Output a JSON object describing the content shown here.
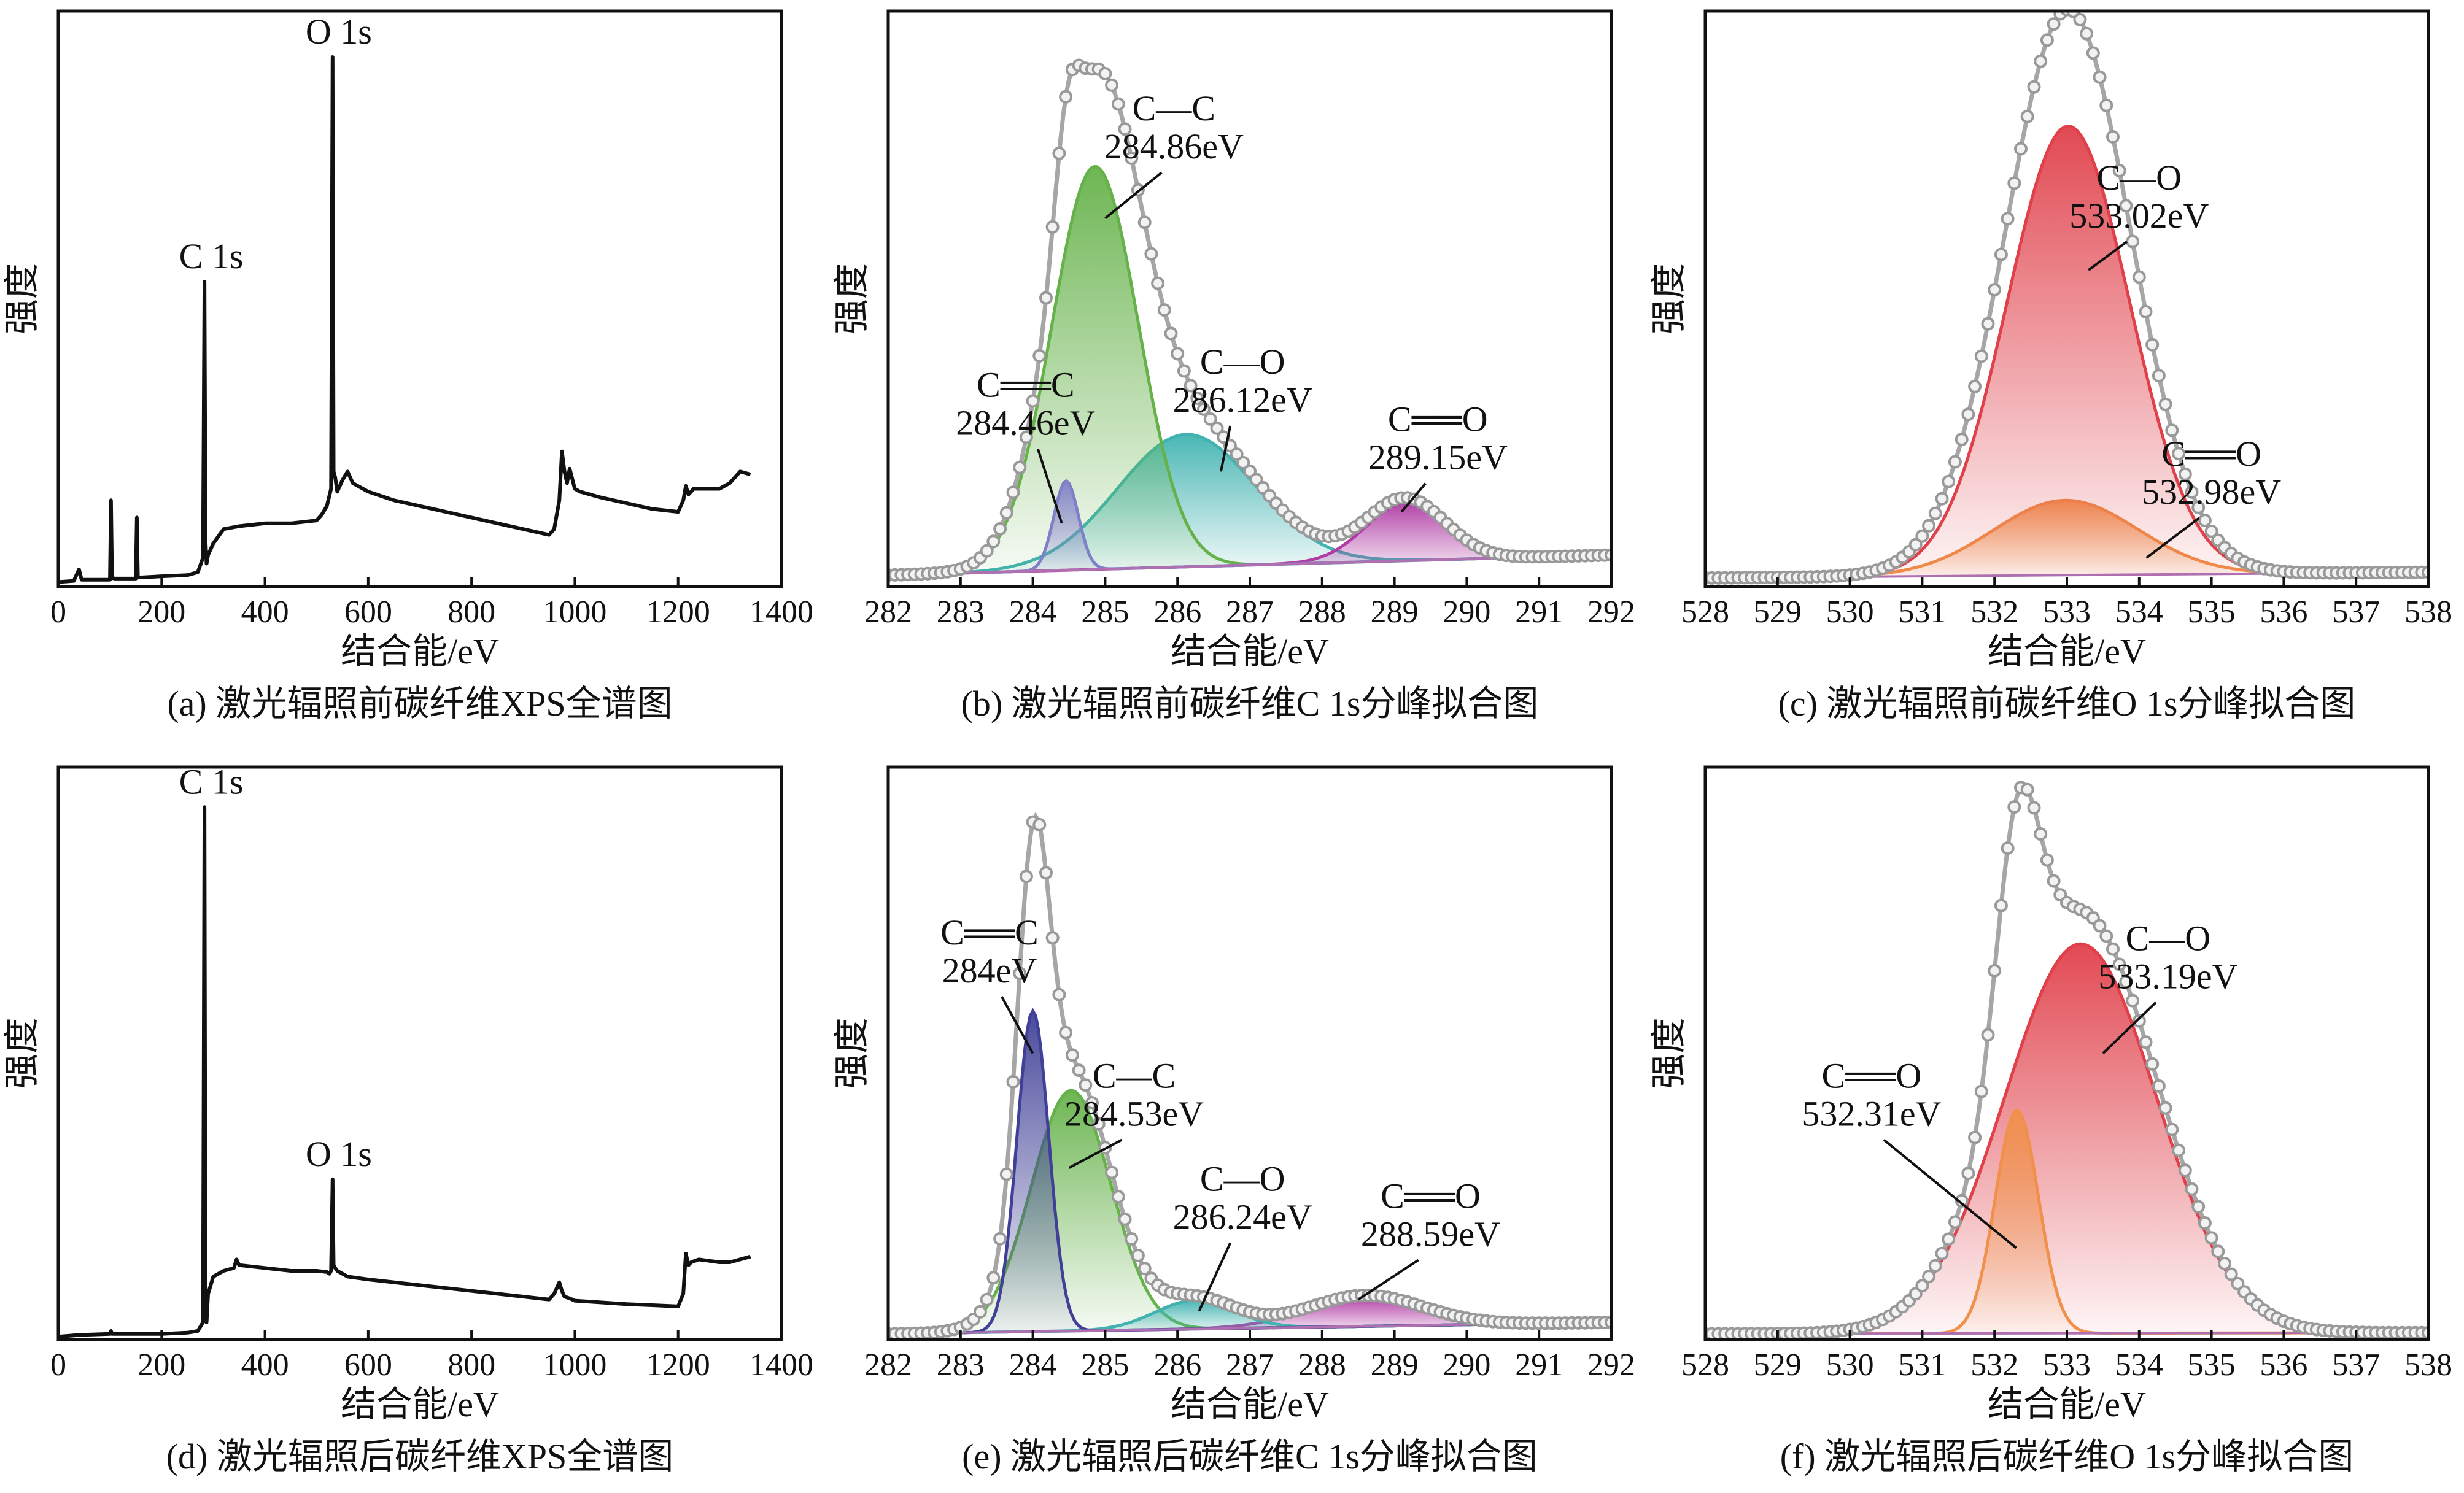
{
  "chart_data": [
    {
      "id": "a",
      "type": "line",
      "kind": "survey",
      "caption": "(a) 激光辐照前碳纤维XPS全谱图",
      "xlabel": "结合能/eV",
      "ylabel": "强度",
      "xlim": [
        0,
        1400
      ],
      "ylim": [
        0,
        1
      ],
      "xticks": [
        0,
        200,
        400,
        600,
        800,
        1000,
        1200,
        1400
      ],
      "x": [
        0,
        30,
        40,
        45,
        100,
        102,
        104,
        110,
        150,
        152,
        154,
        160,
        200,
        250,
        270,
        280,
        283,
        285,
        287,
        290,
        300,
        320,
        350,
        400,
        450,
        500,
        510,
        520,
        528,
        531,
        533,
        536,
        540,
        550,
        560,
        570,
        600,
        650,
        700,
        750,
        800,
        850,
        900,
        950,
        960,
        970,
        975,
        980,
        985,
        990,
        1000,
        1010,
        1050,
        1100,
        1150,
        1200,
        1210,
        1215,
        1220,
        1225,
        1230,
        1250,
        1280,
        1300,
        1320,
        1340
      ],
      "y": [
        0.008,
        0.01,
        0.03,
        0.012,
        0.012,
        0.15,
        0.015,
        0.014,
        0.014,
        0.12,
        0.016,
        0.016,
        0.018,
        0.02,
        0.025,
        0.05,
        0.53,
        0.08,
        0.04,
        0.055,
        0.075,
        0.1,
        0.105,
        0.11,
        0.11,
        0.115,
        0.125,
        0.14,
        0.17,
        0.92,
        0.2,
        0.19,
        0.165,
        0.185,
        0.2,
        0.18,
        0.165,
        0.15,
        0.14,
        0.13,
        0.12,
        0.11,
        0.1,
        0.09,
        0.1,
        0.15,
        0.235,
        0.2,
        0.18,
        0.205,
        0.17,
        0.165,
        0.155,
        0.145,
        0.135,
        0.13,
        0.15,
        0.175,
        0.16,
        0.165,
        0.17,
        0.17,
        0.17,
        0.18,
        0.2,
        0.195
      ],
      "annotations": [
        {
          "text": "C 1s",
          "x": 284,
          "y": 0.53
        },
        {
          "text": "O 1s",
          "x": 531,
          "y": 0.92
        }
      ]
    },
    {
      "id": "b",
      "type": "line",
      "kind": "fit",
      "caption": "(b) 激光辐照前碳纤维C 1s分峰拟合图",
      "xlabel": "结合能/eV",
      "ylabel": "强度",
      "xlim": [
        282,
        292
      ],
      "ylim": [
        0,
        1
      ],
      "xticks": [
        282,
        283,
        284,
        285,
        286,
        287,
        288,
        289,
        290,
        291,
        292
      ],
      "components": [
        {
          "name": "C=C",
          "label": "C══C",
          "label2": "284.46eV",
          "center": 284.46,
          "amp": 0.155,
          "sigma": 0.17,
          "color": "#8080c8",
          "anchor": [
            284.2,
            0.09
          ]
        },
        {
          "name": "C-C",
          "label": "C—C",
          "label2": "284.86eV",
          "center": 284.86,
          "amp": 0.7,
          "sigma": 0.6,
          "color": "#66b24a",
          "anchor": [
            285.0,
            0.66
          ]
        },
        {
          "name": "C-O",
          "label": "C—O",
          "label2": "286.12eV",
          "center": 286.12,
          "amp": 0.23,
          "sigma": 0.95,
          "color": "#40b3b0",
          "anchor": [
            286.7,
            0.19
          ]
        },
        {
          "name": "C=O",
          "label": "C══O",
          "label2": "289.15eV",
          "center": 289.15,
          "amp": 0.1,
          "sigma": 0.55,
          "color": "#b03ca4",
          "anchor": [
            289.3,
            0.11
          ]
        }
      ],
      "baseline": [
        0.02,
        0.055
      ],
      "label_pos": [
        [
          283.9,
          0.33
        ],
        [
          285.95,
          0.81
        ],
        [
          286.9,
          0.37
        ],
        [
          289.6,
          0.27
        ]
      ],
      "line_target": [
        [
          284.4,
          0.11
        ],
        [
          285.0,
          0.64
        ],
        [
          286.6,
          0.2
        ],
        [
          289.1,
          0.13
        ]
      ]
    },
    {
      "id": "c",
      "type": "line",
      "kind": "fit",
      "caption": "(c) 激光辐照前碳纤维O 1s分峰拟合图",
      "xlabel": "结合能/eV",
      "ylabel": "强度",
      "xlim": [
        528,
        538
      ],
      "ylim": [
        0,
        1
      ],
      "xticks": [
        528,
        529,
        530,
        531,
        532,
        533,
        534,
        535,
        536,
        537,
        538
      ],
      "components": [
        {
          "name": "C-O",
          "label": "C—O",
          "label2": "533.02eV",
          "center": 533.02,
          "amp": 0.78,
          "sigma": 0.85,
          "color": "#e0404a",
          "anchor": [
            533.3,
            0.56
          ]
        },
        {
          "name": "C=O",
          "label": "C══O",
          "label2": "532.98eV",
          "center": 532.98,
          "amp": 0.13,
          "sigma": 1.0,
          "color": "#f0904a",
          "anchor": [
            534.2,
            0.05
          ]
        }
      ],
      "baseline": [
        0.015,
        0.025
      ],
      "label_pos": [
        [
          534.0,
          0.69
        ],
        [
          535.0,
          0.21
        ]
      ],
      "line_target": [
        [
          533.3,
          0.55
        ],
        [
          534.1,
          0.05
        ]
      ]
    },
    {
      "id": "d",
      "type": "line",
      "kind": "survey",
      "caption": "(d) 激光辐照后碳纤维XPS全谱图",
      "xlabel": "结合能/eV",
      "ylabel": "强度",
      "xlim": [
        0,
        1400
      ],
      "ylim": [
        0,
        1
      ],
      "xticks": [
        0,
        200,
        400,
        600,
        800,
        1000,
        1200,
        1400
      ],
      "x": [
        0,
        40,
        100,
        102,
        104,
        150,
        200,
        250,
        270,
        280,
        283,
        285,
        287,
        290,
        300,
        320,
        340,
        345,
        350,
        400,
        450,
        500,
        520,
        525,
        528,
        531,
        533,
        536,
        540,
        560,
        600,
        700,
        800,
        900,
        950,
        960,
        970,
        975,
        980,
        990,
        1000,
        1050,
        1100,
        1150,
        1200,
        1210,
        1215,
        1220,
        1225,
        1240,
        1280,
        1300,
        1320,
        1340
      ],
      "y": [
        0.005,
        0.008,
        0.01,
        0.015,
        0.01,
        0.01,
        0.01,
        0.012,
        0.015,
        0.03,
        0.93,
        0.05,
        0.03,
        0.08,
        0.11,
        0.12,
        0.125,
        0.14,
        0.13,
        0.125,
        0.12,
        0.12,
        0.118,
        0.115,
        0.12,
        0.28,
        0.13,
        0.125,
        0.12,
        0.11,
        0.105,
        0.095,
        0.085,
        0.075,
        0.07,
        0.08,
        0.1,
        0.085,
        0.075,
        0.072,
        0.068,
        0.065,
        0.062,
        0.06,
        0.058,
        0.08,
        0.15,
        0.13,
        0.135,
        0.14,
        0.135,
        0.135,
        0.14,
        0.145
      ],
      "annotations": [
        {
          "text": "C 1s",
          "x": 284,
          "y": 0.93
        },
        {
          "text": "O 1s",
          "x": 531,
          "y": 0.28
        }
      ]
    },
    {
      "id": "e",
      "type": "line",
      "kind": "fit",
      "caption": "(e) 激光辐照后碳纤维C 1s分峰拟合图",
      "xlabel": "结合能/eV",
      "ylabel": "强度",
      "xlim": [
        282,
        292
      ],
      "ylim": [
        0,
        1
      ],
      "xticks": [
        282,
        283,
        284,
        285,
        286,
        287,
        288,
        289,
        290,
        291,
        292
      ],
      "components": [
        {
          "name": "C=C",
          "label": "C══C",
          "label2": "284eV",
          "center": 284.0,
          "amp": 0.56,
          "sigma": 0.22,
          "color": "#404098",
          "anchor": [
            284.05,
            0.5
          ]
        },
        {
          "name": "C-C",
          "label": "C—C",
          "label2": "284.53eV",
          "center": 284.53,
          "amp": 0.42,
          "sigma": 0.55,
          "color": "#66b24a",
          "anchor": [
            284.6,
            0.3
          ]
        },
        {
          "name": "C-O",
          "label": "C—O",
          "label2": "286.24eV",
          "center": 286.24,
          "amp": 0.05,
          "sigma": 0.55,
          "color": "#40b3b0",
          "anchor": [
            286.3,
            0.05
          ]
        },
        {
          "name": "C=O",
          "label": "C══O",
          "label2": "288.59eV",
          "center": 288.59,
          "amp": 0.05,
          "sigma": 0.8,
          "color": "#b03ca4",
          "anchor": [
            288.6,
            0.06
          ]
        }
      ],
      "baseline": [
        0.01,
        0.03
      ],
      "label_pos": [
        [
          283.4,
          0.69
        ],
        [
          285.4,
          0.44
        ],
        [
          286.9,
          0.26
        ],
        [
          289.5,
          0.23
        ]
      ],
      "line_target": [
        [
          284.0,
          0.5
        ],
        [
          284.5,
          0.3
        ],
        [
          286.3,
          0.05
        ],
        [
          288.5,
          0.07
        ]
      ]
    },
    {
      "id": "f",
      "type": "line",
      "kind": "fit",
      "caption": "(f) 激光辐照后碳纤维O 1s分峰拟合图",
      "xlabel": "结合能/eV",
      "ylabel": "强度",
      "xlim": [
        528,
        538
      ],
      "ylim": [
        0,
        1
      ],
      "xticks": [
        528,
        529,
        530,
        531,
        532,
        533,
        534,
        535,
        536,
        537,
        538
      ],
      "components": [
        {
          "name": "C-O",
          "label": "C—O",
          "label2": "533.19eV",
          "center": 533.19,
          "amp": 0.68,
          "sigma": 1.05,
          "color": "#e0404a",
          "anchor": [
            533.5,
            0.51
          ]
        },
        {
          "name": "C=O",
          "label": "C══O",
          "label2": "532.31eV",
          "center": 532.31,
          "amp": 0.39,
          "sigma": 0.3,
          "color": "#f0904a",
          "anchor": [
            532.3,
            0.16
          ]
        }
      ],
      "baseline": [
        0.01,
        0.012
      ],
      "label_pos": [
        [
          534.4,
          0.68
        ],
        [
          530.3,
          0.44
        ]
      ],
      "line_target": [
        [
          533.5,
          0.5
        ],
        [
          532.3,
          0.16
        ]
      ]
    }
  ]
}
